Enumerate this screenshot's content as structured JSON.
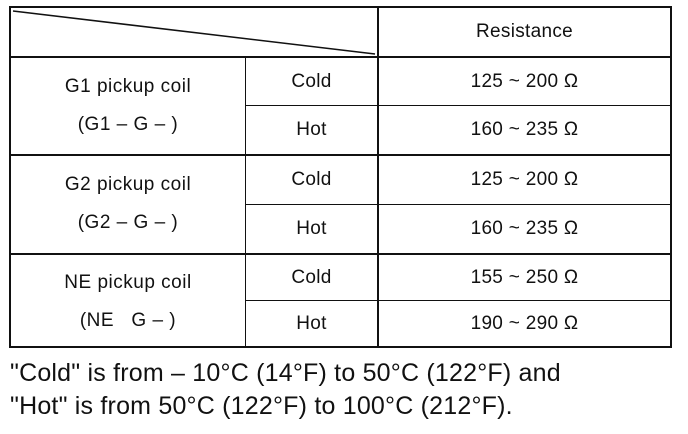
{
  "table": {
    "header": {
      "resistance_label": "Resistance"
    },
    "groups": [
      {
        "name_line1": "G1 pickup coil",
        "name_line2": "(G1 – G – )",
        "rows": [
          {
            "condition": "Cold",
            "value": "125 ~ 200 Ω"
          },
          {
            "condition": "Hot",
            "value": "160 ~ 235 Ω"
          }
        ]
      },
      {
        "name_line1": "G2 pickup coil",
        "name_line2": "(G2 – G – )",
        "rows": [
          {
            "condition": "Cold",
            "value": "125 ~ 200 Ω"
          },
          {
            "condition": "Hot",
            "value": "160 ~ 235 Ω"
          }
        ]
      },
      {
        "name_line1": "NE pickup coil",
        "name_line2": "(NE   G – )",
        "rows": [
          {
            "condition": "Cold",
            "value": "155 ~ 250 Ω"
          },
          {
            "condition": "Hot",
            "value": "190 ~ 290 Ω"
          }
        ]
      }
    ]
  },
  "footnote": {
    "line1": "\"Cold\" is from – 10°C (14°F) to 50°C (122°F) and",
    "line2": "\"Hot\" is from 50°C (122°F) to 100°C (212°F)."
  }
}
